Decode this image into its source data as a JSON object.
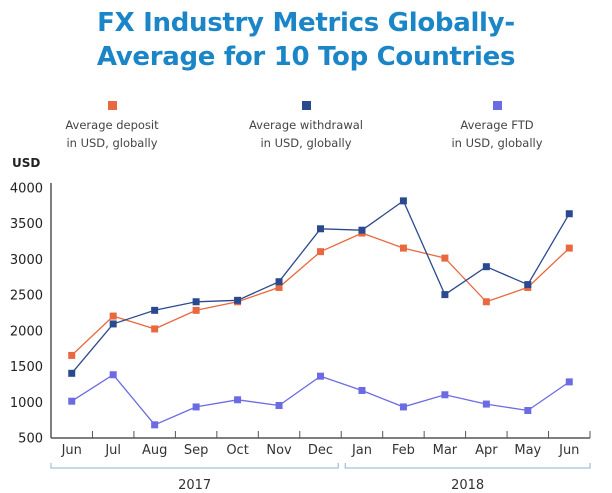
{
  "chart_data": {
    "type": "line",
    "title": "FX Industry Metrics Globally-\nAverage for 10 Top Countries",
    "title_lines": [
      "FX Industry Metrics Globally-",
      "Average for 10 Top Countries"
    ],
    "ylabel": "USD",
    "xlabel": "",
    "ylim": [
      500,
      4000
    ],
    "yticks": [
      500,
      1000,
      1500,
      2000,
      2500,
      3000,
      3500,
      4000
    ],
    "categories": [
      "Jun",
      "Jul",
      "Aug",
      "Sep",
      "Oct",
      "Nov",
      "Dec",
      "Jan",
      "Feb",
      "Mar",
      "Apr",
      "May",
      "Jun"
    ],
    "year_groups": [
      {
        "label": "2017",
        "from": 0,
        "to": 6
      },
      {
        "label": "2018",
        "from": 7,
        "to": 12
      }
    ],
    "grid": false,
    "legend_position": "top",
    "series": [
      {
        "name": "Average deposit in USD, globally",
        "legend_lines": [
          "Average deposit",
          "in USD, globally"
        ],
        "color": "#e8693f",
        "values": [
          1650,
          2200,
          2020,
          2280,
          2400,
          2600,
          3100,
          3360,
          3150,
          3010,
          2400,
          2600,
          3150
        ]
      },
      {
        "name": "Average withdrawal in USD, globally",
        "legend_lines": [
          "Average withdrawal",
          "in USD, globally"
        ],
        "color": "#2b4a8e",
        "values": [
          1400,
          2090,
          2280,
          2400,
          2420,
          2680,
          3420,
          3400,
          3810,
          2500,
          2890,
          2640,
          3630
        ]
      },
      {
        "name": "Average FTD in USD, globally",
        "legend_lines": [
          "Average FTD",
          "in USD, globally"
        ],
        "color": "#6b6be3",
        "values": [
          1010,
          1380,
          680,
          930,
          1030,
          950,
          1360,
          1160,
          930,
          1100,
          970,
          880,
          1280
        ]
      }
    ]
  },
  "colors": {
    "title": "#1b86c7",
    "axis": "#555555",
    "bracket": "#8fb3cf"
  }
}
